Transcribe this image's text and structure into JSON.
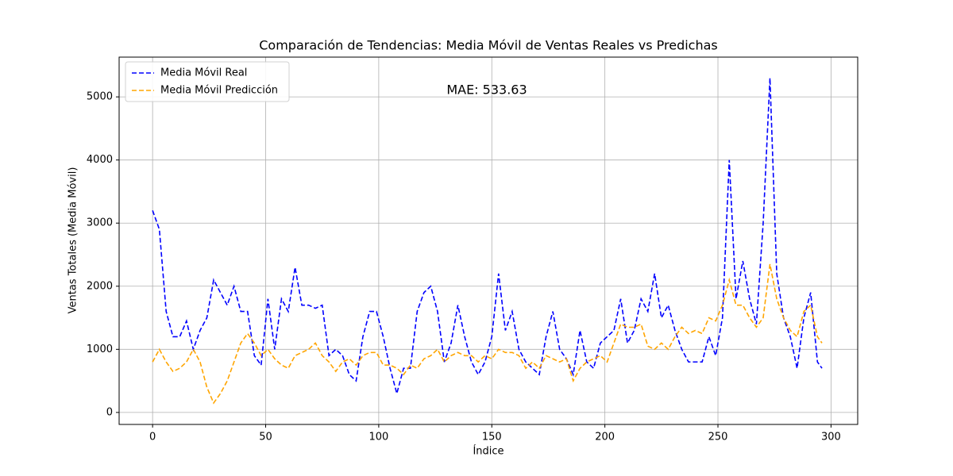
{
  "chart_data": {
    "type": "line",
    "title": "Comparación de Tendencias: Media Móvil de Ventas Reales vs Predichas",
    "xlabel": "Índice",
    "ylabel": "Ventas Totales (Media Móvil)",
    "annotation": {
      "text": "MAE: 533.63",
      "color": "#ff0000"
    },
    "x": [
      0,
      3,
      6,
      9,
      12,
      15,
      18,
      21,
      24,
      27,
      30,
      33,
      36,
      39,
      42,
      45,
      48,
      51,
      54,
      57,
      60,
      63,
      66,
      69,
      72,
      75,
      78,
      81,
      84,
      87,
      90,
      93,
      96,
      99,
      102,
      105,
      108,
      111,
      114,
      117,
      120,
      123,
      126,
      129,
      132,
      135,
      138,
      141,
      144,
      147,
      150,
      153,
      156,
      159,
      162,
      165,
      168,
      171,
      174,
      177,
      180,
      183,
      186,
      189,
      192,
      195,
      198,
      201,
      204,
      207,
      210,
      213,
      216,
      219,
      222,
      225,
      228,
      231,
      234,
      237,
      240,
      243,
      246,
      249,
      252,
      255,
      258,
      261,
      264,
      267,
      270,
      273,
      276,
      279,
      282,
      285,
      288,
      291,
      294,
      296
    ],
    "series": [
      {
        "name": "Media Móvil Real",
        "color": "#0000ff",
        "values": [
          3200,
          2900,
          1600,
          1200,
          1200,
          1450,
          1000,
          1300,
          1500,
          2100,
          1900,
          1700,
          2000,
          1600,
          1600,
          900,
          750,
          1800,
          1000,
          1800,
          1600,
          2300,
          1700,
          1700,
          1650,
          1700,
          900,
          1000,
          900,
          600,
          500,
          1200,
          1600,
          1600,
          1200,
          700,
          300,
          700,
          700,
          1600,
          1900,
          2000,
          1600,
          800,
          1100,
          1700,
          1200,
          800,
          600,
          800,
          1200,
          2200,
          1300,
          1600,
          1000,
          800,
          700,
          600,
          1200,
          1600,
          1000,
          850,
          600,
          1300,
          800,
          700,
          1100,
          1200,
          1300,
          1800,
          1100,
          1300,
          1800,
          1600,
          2200,
          1500,
          1700,
          1300,
          1000,
          800,
          800,
          800,
          1200,
          900,
          1500,
          4000,
          1800,
          2400,
          1800,
          1400,
          3000,
          5300,
          2200,
          1500,
          1200,
          700,
          1500,
          1900,
          800,
          700
        ]
      },
      {
        "name": "Media Móvil Predicción",
        "color": "#ffa500",
        "values": [
          800,
          1000,
          800,
          650,
          700,
          800,
          1000,
          800,
          400,
          150,
          300,
          500,
          800,
          1100,
          1250,
          1100,
          900,
          1000,
          850,
          750,
          700,
          900,
          950,
          1000,
          1100,
          900,
          800,
          650,
          800,
          850,
          750,
          900,
          950,
          950,
          750,
          750,
          700,
          600,
          750,
          700,
          850,
          900,
          1000,
          800,
          900,
          950,
          900,
          900,
          800,
          900,
          850,
          1000,
          950,
          950,
          900,
          700,
          800,
          700,
          900,
          850,
          800,
          850,
          500,
          700,
          800,
          850,
          900,
          800,
          1100,
          1400,
          1350,
          1350,
          1400,
          1050,
          1000,
          1100,
          1000,
          1200,
          1350,
          1250,
          1300,
          1250,
          1500,
          1450,
          1700,
          2100,
          1700,
          1700,
          1500,
          1350,
          1500,
          2350,
          1800,
          1500,
          1300,
          1200,
          1600,
          1700,
          1200,
          1100
        ]
      }
    ],
    "xlim": [
      -14.8,
      311.8
    ],
    "ylim": [
      -190,
      5630
    ],
    "xticks": [
      0,
      50,
      100,
      150,
      200,
      250,
      300
    ],
    "yticks": [
      0,
      1000,
      2000,
      3000,
      4000,
      5000
    ],
    "grid": true,
    "legend": "upper-left",
    "line_style": "dashed"
  }
}
